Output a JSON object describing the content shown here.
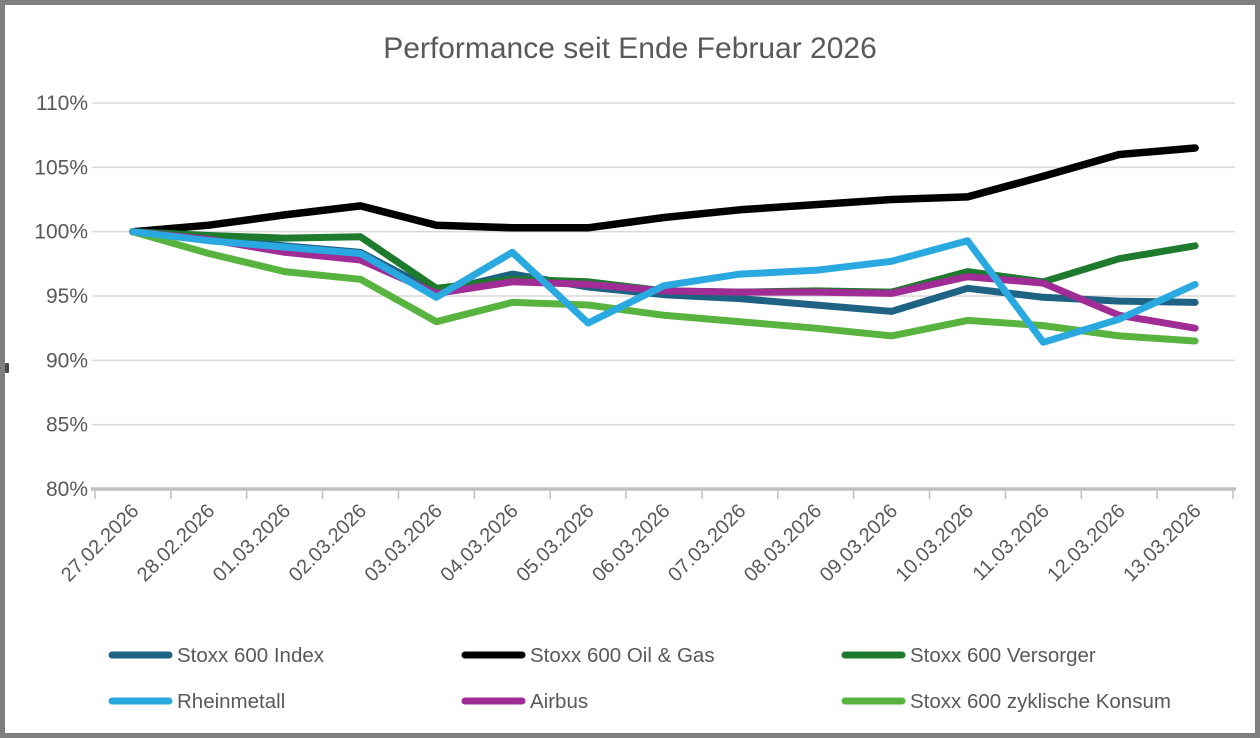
{
  "chart_data": {
    "type": "line",
    "title": "Performance seit Ende Februar 2026",
    "categories": [
      "27.02.2026",
      "28.02.2026",
      "01.03.2026",
      "02.03.2026",
      "03.03.2026",
      "04.03.2026",
      "05.03.2026",
      "06.03.2026",
      "07.03.2026",
      "08.03.2026",
      "09.03.2026",
      "10.03.2026",
      "11.03.2026",
      "12.03.2026",
      "13.03.2026"
    ],
    "series": [
      {
        "name": "Stoxx 600 Index",
        "color": "#1E6284",
        "values": [
          100,
          99.6,
          98.9,
          98.4,
          95.3,
          96.7,
          95.7,
          95.1,
          94.8,
          94.3,
          93.8,
          95.6,
          94.9,
          94.6,
          94.5
        ]
      },
      {
        "name": "Stoxx 600 Oil & Gas",
        "color": "#000000",
        "values": [
          100,
          100.5,
          101.3,
          102.0,
          100.5,
          100.3,
          100.3,
          101.1,
          101.7,
          102.1,
          102.5,
          102.7,
          104.3,
          106.0,
          106.5
        ]
      },
      {
        "name": "Stoxx 600 Versorger",
        "color": "#1E7B2D",
        "values": [
          100,
          99.7,
          99.5,
          99.6,
          95.6,
          96.3,
          96.1,
          95.4,
          95.3,
          95.4,
          95.3,
          96.9,
          96.1,
          97.9,
          98.9
        ]
      },
      {
        "name": "Rheinmetall",
        "color": "#29A9E0",
        "values": [
          100,
          99.3,
          98.8,
          98.3,
          94.9,
          98.4,
          92.9,
          95.8,
          96.7,
          97.0,
          97.7,
          99.3,
          91.4,
          93.2,
          95.9
        ]
      },
      {
        "name": "Airbus",
        "color": "#A02D96",
        "values": [
          100,
          99.4,
          98.4,
          97.8,
          95.2,
          96.1,
          95.9,
          95.4,
          95.3,
          95.3,
          95.2,
          96.5,
          96.0,
          93.5,
          92.5
        ]
      },
      {
        "name": "Stoxx 600 zyklische Konsum",
        "color": "#58B43F",
        "values": [
          100,
          98.3,
          96.9,
          96.3,
          93.0,
          94.5,
          94.3,
          93.5,
          93.0,
          92.5,
          91.9,
          93.1,
          92.7,
          91.9,
          91.5
        ]
      }
    ],
    "y_axis": {
      "min": 80,
      "max": 110,
      "step": 5,
      "tick_labels": [
        "80%",
        "85%",
        "90%",
        "95%",
        "100%",
        "105%",
        "110%"
      ]
    },
    "x_axis": {
      "label_rotation_deg": -45
    },
    "legend": {
      "position": "bottom",
      "rows": 2,
      "columns": 3,
      "entries": [
        "Stoxx 600 Index",
        "Stoxx 600 Oil & Gas",
        "Stoxx 600 Versorger",
        "Rheinmetall",
        "Airbus",
        "Stoxx 600 zyklische Konsum"
      ]
    },
    "grid": true,
    "colors": {
      "text": "#595959",
      "gridline": "#D9D9D9",
      "axis_line": "#BFBFBF",
      "border": "#7F7F7F",
      "background": "#FFFFFF"
    }
  }
}
